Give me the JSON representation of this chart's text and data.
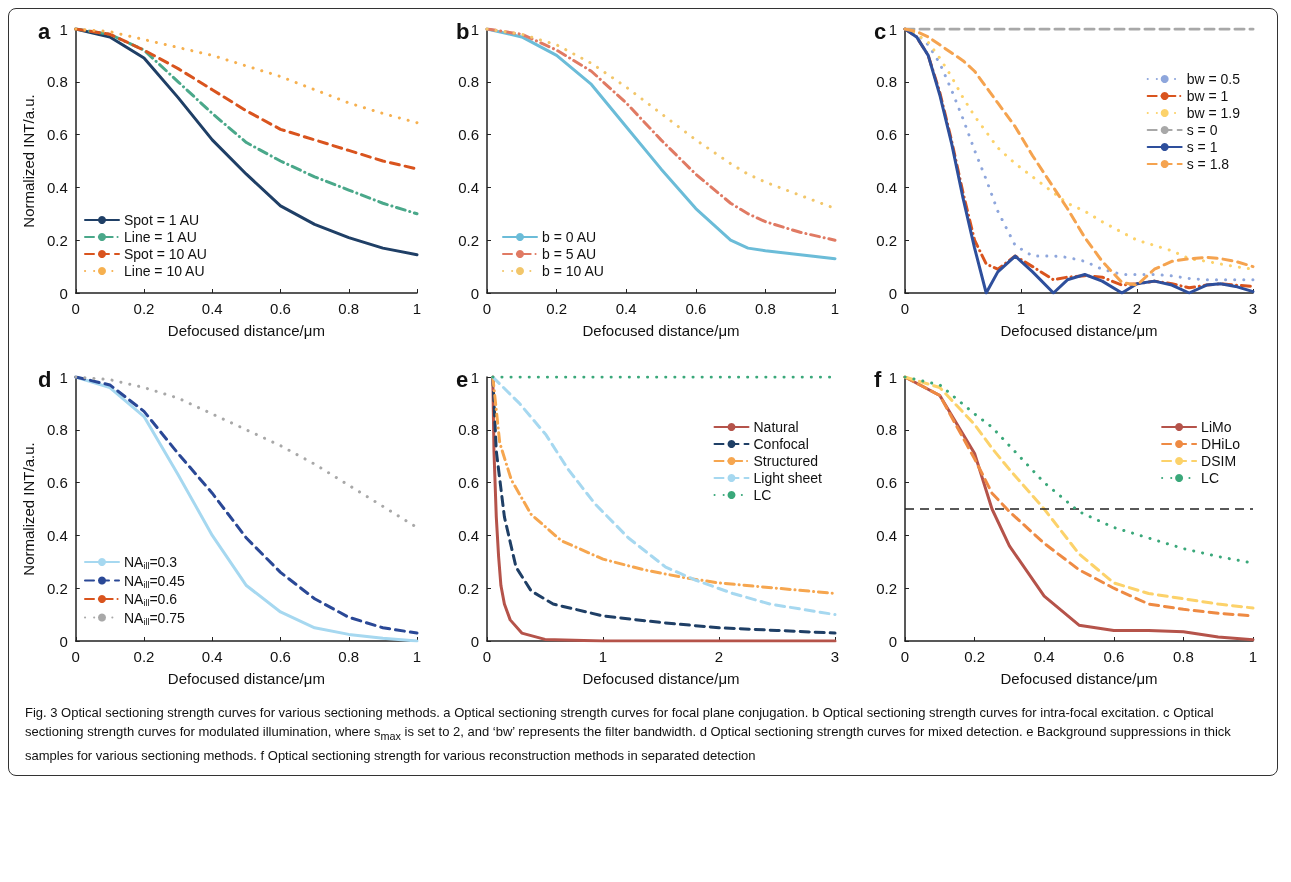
{
  "chart_data": [
    {
      "type": "line",
      "title": "a",
      "xlabel": "Defocused distance/μm",
      "ylabel": "Normalized INT/a.u.",
      "x": [
        0,
        0.1,
        0.2,
        0.3,
        0.4,
        0.5,
        0.6,
        0.7,
        0.8,
        0.9,
        1
      ],
      "xlim": [
        0,
        1
      ],
      "xticks": [
        0,
        0.2,
        0.4,
        0.6,
        0.8,
        1
      ],
      "ylim": [
        0,
        1
      ],
      "yticks": [
        0,
        0.2,
        0.4,
        0.6,
        0.8,
        1
      ],
      "legend": "bottom left",
      "annotations": [
        "Fig. 3 Optical sectioning strength curves for various sectioning methods. a Optical sectioning strength curves for focal plane conjugation. b Optical sectioning strength curves for intra-focal excitation. c Optical sectioning strength curves for modulated illumination, where s$_{max}$ is set to 2, and ‘bw’ represents the filter bandwidth. d Optical sectioning strength curves for mixed detection. e Background suppressions in thick samples for various sectioning methods. f Optical sectioning strength for various reconstruction methods in separated detection"
      ],
      "series": [
        {
          "name": "Spot = 1 AU",
          "color": "#1f3f66",
          "line_style": "solid",
          "values": [
            1,
            0.97,
            0.89,
            0.74,
            0.58,
            0.45,
            0.33,
            0.26,
            0.21,
            0.17,
            0.145
          ]
        },
        {
          "name": "Line = 1 AU",
          "color": "#4aa88a",
          "line_style": "dashdot",
          "values": [
            1,
            0.98,
            0.92,
            0.8,
            0.68,
            0.57,
            0.5,
            0.44,
            0.39,
            0.34,
            0.3
          ]
        },
        {
          "name": "Spot = 10 AU",
          "color": "#d9541e",
          "line_style": "dashed",
          "values": [
            1,
            0.98,
            0.92,
            0.85,
            0.77,
            0.69,
            0.62,
            0.58,
            0.54,
            0.5,
            0.47
          ]
        },
        {
          "name": "Line = 10 AU",
          "color": "#f6b04f",
          "line_style": "dotted",
          "values": [
            1,
            0.99,
            0.96,
            0.93,
            0.9,
            0.86,
            0.82,
            0.77,
            0.72,
            0.68,
            0.645
          ]
        }
      ]
    },
    {
      "type": "line",
      "title": "b",
      "xlabel": "Defocused distance/μm",
      "x": [
        0,
        0.1,
        0.2,
        0.3,
        0.4,
        0.5,
        0.6,
        0.7,
        0.75,
        0.8,
        0.9,
        1
      ],
      "xlim": [
        0,
        1
      ],
      "xticks": [
        0,
        0.2,
        0.4,
        0.6,
        0.8,
        1
      ],
      "ylim": [
        0,
        1
      ],
      "yticks": [
        0,
        0.2,
        0.4,
        0.6,
        0.8,
        1
      ],
      "legend": "bottom left",
      "series": [
        {
          "name": "b = 0 AU",
          "color": "#6bbcd8",
          "line_style": "solid",
          "values": [
            1,
            0.97,
            0.9,
            0.79,
            0.63,
            0.47,
            0.32,
            0.2,
            0.17,
            0.16,
            0.145,
            0.13
          ]
        },
        {
          "name": "b = 5 AU",
          "color": "#e07a63",
          "line_style": "dashdot",
          "values": [
            1,
            0.98,
            0.92,
            0.84,
            0.72,
            0.58,
            0.45,
            0.34,
            0.3,
            0.27,
            0.23,
            0.2
          ]
        },
        {
          "name": "b = 10 AU",
          "color": "#f2c66a",
          "line_style": "dotted",
          "values": [
            1,
            0.98,
            0.94,
            0.87,
            0.78,
            0.68,
            0.58,
            0.49,
            0.45,
            0.42,
            0.37,
            0.32
          ]
        }
      ]
    },
    {
      "type": "line",
      "title": "c",
      "xlabel": "Defocused distance/μm",
      "x": [
        0,
        0.1,
        0.2,
        0.3,
        0.4,
        0.5,
        0.6,
        0.7,
        0.8,
        0.95,
        1.1,
        1.28,
        1.4,
        1.55,
        1.7,
        1.87,
        2,
        2.15,
        2.3,
        2.45,
        2.6,
        2.72,
        2.85,
        3
      ],
      "xlim": [
        0,
        3
      ],
      "xticks": [
        0,
        1,
        2,
        3
      ],
      "ylim": [
        0,
        1
      ],
      "yticks": [
        0,
        0.2,
        0.4,
        0.6,
        0.8,
        1
      ],
      "legend": "top right",
      "series": [
        {
          "name": "bw = 0.5",
          "color": "#8ea6dc",
          "line_style": "dotted",
          "values": [
            1,
            0.98,
            0.94,
            0.87,
            0.77,
            0.66,
            0.54,
            0.43,
            0.31,
            0.18,
            0.14,
            0.14,
            0.135,
            0.12,
            0.09,
            0.07,
            0.07,
            0.07,
            0.065,
            0.055,
            0.05,
            0.05,
            0.05,
            0.05
          ]
        },
        {
          "name": "bw = 1",
          "color": "#d9541e",
          "line_style": "dashdot",
          "values": [
            1,
            0.97,
            0.9,
            0.76,
            0.58,
            0.38,
            0.2,
            0.11,
            0.09,
            0.14,
            0.1,
            0.05,
            0.06,
            0.065,
            0.06,
            0.03,
            0.035,
            0.045,
            0.035,
            0.02,
            0.03,
            0.035,
            0.03,
            0.025
          ]
        },
        {
          "name": "bw = 1.9",
          "color": "#fcd26a",
          "line_style": "dotted",
          "values": [
            1,
            0.98,
            0.95,
            0.89,
            0.82,
            0.74,
            0.67,
            0.61,
            0.55,
            0.49,
            0.44,
            0.38,
            0.34,
            0.31,
            0.27,
            0.23,
            0.2,
            0.18,
            0.16,
            0.13,
            0.12,
            0.11,
            0.1,
            0.09
          ]
        },
        {
          "name": "s = 0",
          "color": "#a8a8a8",
          "line_style": "dashed",
          "x": [
            0,
            3
          ],
          "values": [
            1,
            1
          ]
        },
        {
          "name": "s = 1",
          "color": "#2e4f9c",
          "line_style": "solid",
          "values": [
            1,
            0.97,
            0.9,
            0.75,
            0.57,
            0.36,
            0.17,
            0,
            0.08,
            0.14,
            0.08,
            0,
            0.05,
            0.07,
            0.045,
            0,
            0.035,
            0.045,
            0.03,
            0,
            0.03,
            0.035,
            0.025,
            0.005
          ]
        },
        {
          "name": "s = 1.8",
          "color": "#f5a34f",
          "line_style": "dashed",
          "values": [
            1,
            0.99,
            0.97,
            0.94,
            0.91,
            0.88,
            0.84,
            0.78,
            0.72,
            0.63,
            0.52,
            0.4,
            0.32,
            0.21,
            0.12,
            0.04,
            0.03,
            0.09,
            0.12,
            0.13,
            0.135,
            0.13,
            0.12,
            0.1
          ]
        }
      ]
    },
    {
      "type": "line",
      "title": "d",
      "xlabel": "Defocused distance/μm",
      "ylabel": "Normalized INT/a.u.",
      "x": [
        0,
        0.1,
        0.2,
        0.3,
        0.4,
        0.5,
        0.6,
        0.7,
        0.8,
        0.9,
        1
      ],
      "xlim": [
        0,
        1
      ],
      "xticks": [
        0,
        0.2,
        0.4,
        0.6,
        0.8,
        1
      ],
      "ylim": [
        0,
        1
      ],
      "yticks": [
        0,
        0.2,
        0.4,
        0.6,
        0.8,
        1
      ],
      "legend": "bottom left",
      "series": [
        {
          "name": "NA$_{ill}$=0.3",
          "color": "#a6d8f0",
          "line_style": "solid",
          "values": [
            1,
            0.96,
            0.85,
            0.63,
            0.4,
            0.21,
            0.11,
            0.05,
            0.025,
            0.01,
            0
          ]
        },
        {
          "name": "NA$_{ill}$=0.45",
          "color": "#2a4896",
          "line_style": "dashed",
          "values": [
            1,
            0.97,
            0.87,
            0.71,
            0.56,
            0.39,
            0.26,
            0.16,
            0.09,
            0.05,
            0.03
          ]
        },
        {
          "name": "NA$_{ill}$=0.6",
          "color": "#d9541e",
          "line_style": "dashdot",
          "values": [
            null,
            null,
            null,
            null,
            null,
            null,
            null,
            null,
            null,
            null,
            null
          ]
        },
        {
          "name": "NA$_{ill}$=0.75",
          "color": "#a8a8a8",
          "line_style": "dotted",
          "values": [
            1,
            0.99,
            0.96,
            0.92,
            0.86,
            0.8,
            0.74,
            0.67,
            0.59,
            0.51,
            0.43
          ]
        }
      ]
    },
    {
      "type": "line",
      "title": "e",
      "xlabel": "Defocused distance/μm",
      "xlim": [
        0,
        3
      ],
      "xticks": [
        0,
        1,
        2,
        3
      ],
      "ylim": [
        0,
        1
      ],
      "yticks": [
        0,
        0.2,
        0.4,
        0.6,
        0.8,
        1
      ],
      "legend": "top right",
      "series": [
        {
          "name": "Natural",
          "color": "#b5534a",
          "line_style": "solid",
          "x": [
            0.05,
            0.06,
            0.08,
            0.1,
            0.12,
            0.15,
            0.2,
            0.3,
            0.5,
            1,
            2,
            3
          ],
          "values": [
            1,
            0.72,
            0.47,
            0.32,
            0.21,
            0.14,
            0.08,
            0.03,
            0.006,
            0,
            0,
            0
          ]
        },
        {
          "name": "Confocal",
          "color": "#1f3f66",
          "line_style": "dashed",
          "x": [
            0.05,
            0.08,
            0.15,
            0.25,
            0.38,
            0.57,
            1,
            1.5,
            2,
            2.5,
            3
          ],
          "values": [
            1,
            0.72,
            0.47,
            0.28,
            0.19,
            0.14,
            0.095,
            0.07,
            0.05,
            0.04,
            0.03
          ]
        },
        {
          "name": "Structured",
          "color": "#f6a64f",
          "line_style": "dashdot",
          "x": [
            0.05,
            0.11,
            0.21,
            0.38,
            0.64,
            1,
            1.35,
            1.7,
            2,
            2.5,
            3
          ],
          "values": [
            1,
            0.75,
            0.61,
            0.48,
            0.38,
            0.31,
            0.27,
            0.24,
            0.22,
            0.2,
            0.18
          ]
        },
        {
          "name": "Light sheet",
          "color": "#a6d8f0",
          "line_style": "dashed",
          "x": [
            0.05,
            0.28,
            0.51,
            0.7,
            0.93,
            1.22,
            1.54,
            1.8,
            2.12,
            2.44,
            3
          ],
          "values": [
            1,
            0.9,
            0.78,
            0.65,
            0.52,
            0.39,
            0.28,
            0.23,
            0.18,
            0.14,
            0.1
          ]
        },
        {
          "name": "LC",
          "color": "#3aa87a",
          "line_style": "dotted",
          "x": [
            0.05,
            1,
            2,
            3
          ],
          "values": [
            1,
            1,
            1,
            1
          ]
        }
      ]
    },
    {
      "type": "line",
      "title": "f",
      "xlabel": "Defocused distance/μm",
      "x": [
        0,
        0.1,
        0.2,
        0.25,
        0.3,
        0.4,
        0.5,
        0.6,
        0.7,
        0.8,
        0.9,
        1
      ],
      "xlim": [
        0,
        1
      ],
      "xticks": [
        0,
        0.2,
        0.4,
        0.6,
        0.8,
        1
      ],
      "ylim": [
        0,
        1
      ],
      "yticks": [
        0,
        0.2,
        0.4,
        0.6,
        0.8,
        1
      ],
      "legend": "top right",
      "ref_lines": [
        {
          "axis": "y",
          "value": 0.5,
          "color": "#222222",
          "line_style": "dashed"
        }
      ],
      "series": [
        {
          "name": "LiMo",
          "color": "#b5534a",
          "line_style": "solid",
          "values": [
            1,
            0.93,
            0.71,
            0.5,
            0.36,
            0.17,
            0.06,
            0.04,
            0.04,
            0.035,
            0.015,
            0.005
          ]
        },
        {
          "name": "DHiLo",
          "color": "#ee8a43",
          "line_style": "dashed",
          "values": [
            1,
            0.93,
            0.69,
            0.56,
            0.49,
            0.37,
            0.27,
            0.2,
            0.14,
            0.12,
            0.105,
            0.095
          ]
        },
        {
          "name": "DSIM",
          "color": "#fcd26a",
          "line_style": "dashed",
          "values": [
            1,
            0.96,
            0.82,
            0.73,
            0.65,
            0.5,
            0.33,
            0.22,
            0.18,
            0.16,
            0.14,
            0.125
          ]
        },
        {
          "name": "LC",
          "color": "#3aa87a",
          "line_style": "dotted",
          "values": [
            1,
            0.97,
            0.86,
            0.81,
            0.74,
            0.6,
            0.49,
            0.43,
            0.39,
            0.35,
            0.32,
            0.295
          ]
        }
      ]
    }
  ]
}
